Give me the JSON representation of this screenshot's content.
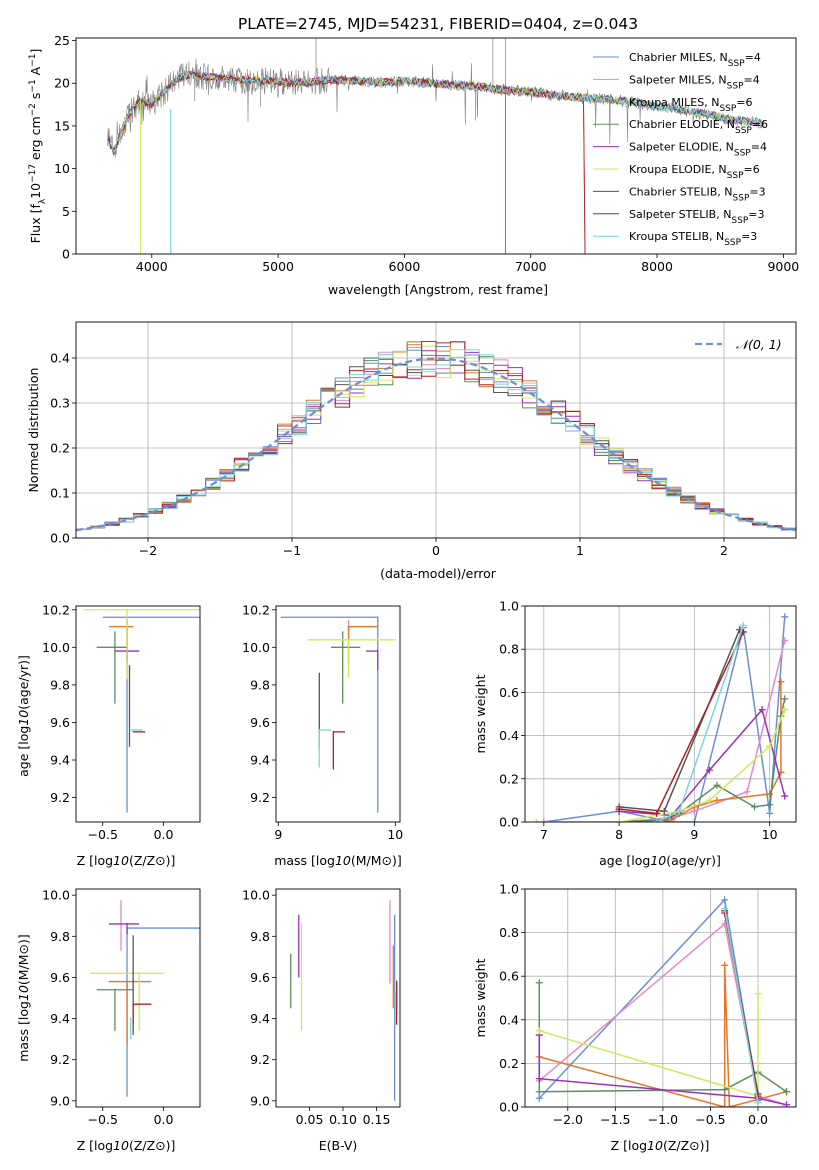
{
  "title": "PLATE=2745, MJD=54231, FIBERID=0404, z=0.043",
  "chart_data": [
    {
      "type": "line",
      "id": "spectrum",
      "xlabel": "wavelength [Angstrom, rest frame]",
      "ylabel": "Flux [f_λ10^-17 erg cm^-2 s^-1 A^-1]",
      "xlim": [
        3400,
        9100
      ],
      "ylim": [
        0,
        25.3
      ],
      "xticks": [
        4000,
        5000,
        6000,
        7000,
        8000,
        9000
      ],
      "yticks": [
        0,
        5,
        10,
        15,
        20,
        25
      ],
      "legend_position": "upper-right",
      "data_continuum": {
        "x": [
          3650,
          3700,
          3800,
          3900,
          4000,
          4100,
          4200,
          4300,
          4400,
          4600,
          4800,
          5000,
          5200,
          5400,
          5600,
          5800,
          6000,
          6200,
          6400,
          6600,
          6800,
          7000,
          7200,
          7400,
          7600,
          7800,
          8000,
          8200,
          8400,
          8600,
          8800
        ],
        "y": [
          13.5,
          12.0,
          15.8,
          18.0,
          17.5,
          19.0,
          20.5,
          21.0,
          20.8,
          20.5,
          20.3,
          20.2,
          20.0,
          20.4,
          20.3,
          20.1,
          20.3,
          20.0,
          19.8,
          19.6,
          19.2,
          19.0,
          18.6,
          18.3,
          18.1,
          17.8,
          17.3,
          16.9,
          16.3,
          15.7,
          15.4
        ]
      },
      "series": [
        {
          "name": "Chabrier MILES, N_SSP=4",
          "color": "#6a8fd6"
        },
        {
          "name": "Salpeter MILES, N_SSP=4",
          "color": "#e68ac3"
        },
        {
          "name": "Kroupa MILES, N_SSP=6",
          "color": "#e6752a"
        },
        {
          "name": "Chabrier ELODIE, N_SSP=6",
          "color": "#5b8f5e"
        },
        {
          "name": "Salpeter ELODIE, N_SSP=4",
          "color": "#9b30bf"
        },
        {
          "name": "Kroupa ELODIE, N_SSP=6",
          "color": "#d4e65c"
        },
        {
          "name": "Chabrier STELIB, N_SSP=3",
          "color": "#555555"
        },
        {
          "name": "Salpeter STELIB, N_SSP=3",
          "color": "#b02020"
        },
        {
          "name": "Kroupa STELIB, N_SSP=3",
          "color": "#7fd6d9"
        }
      ]
    },
    {
      "type": "step",
      "id": "residuals",
      "xlabel": "(data-model)/error",
      "ylabel": "Normed distribution",
      "xlim": [
        -2.5,
        2.5
      ],
      "ylim": [
        0,
        0.48
      ],
      "xticks": [
        -2,
        -1,
        0,
        1,
        2
      ],
      "yticks": [
        0.0,
        0.1,
        0.2,
        0.3,
        0.4
      ],
      "grid": true,
      "legend_position": "upper-right",
      "normal_label": "𝒩(0, 1)",
      "normal_color": "#6a8fd6",
      "bins": 50
    },
    {
      "type": "scatter",
      "id": "age-vs-z",
      "xlabel": "Z [log10(Z/Z⊙)]",
      "ylabel": "age [log10(age/yr)]",
      "xlim": [
        -0.72,
        0.3
      ],
      "ylim": [
        9.07,
        10.22
      ],
      "xticks": [
        -0.5,
        0.0
      ],
      "yticks": [
        9.2,
        9.4,
        9.6,
        9.8,
        10.0,
        10.2
      ],
      "errorbars": [
        {
          "color": "#6a8fd6",
          "x": -0.3,
          "xerr": [
            0.2,
            0.6
          ],
          "y": 10.16,
          "yerr": [
            1.04,
            0
          ]
        },
        {
          "color": "#e68ac3",
          "x": -0.3,
          "xerr": [
            0.0,
            0.0
          ],
          "y": 10.14,
          "yerr": [
            0.1,
            0
          ]
        },
        {
          "color": "#e6752a",
          "x": -0.3,
          "xerr": [
            0.15,
            0.05
          ],
          "y": 10.11,
          "yerr": [
            0.2,
            0
          ]
        },
        {
          "color": "#5b8f5e",
          "x": -0.4,
          "xerr": [
            0.15,
            0.1
          ],
          "y": 10.0,
          "yerr": [
            0.3,
            0.08
          ]
        },
        {
          "color": "#9b30bf",
          "x": -0.3,
          "xerr": [
            0.1,
            0.1
          ],
          "y": 9.98,
          "yerr": [
            0.05,
            0
          ]
        },
        {
          "color": "#d4e65c",
          "x": -0.3,
          "xerr": [
            0.36,
            0.6
          ],
          "y": 10.2,
          "yerr": [
            0.37,
            0
          ]
        },
        {
          "color": "#555555",
          "x": -0.28,
          "xerr": [
            0.0,
            0.0
          ],
          "y": 9.9,
          "yerr": [
            0.43,
            0
          ]
        },
        {
          "color": "#b02020",
          "x": -0.25,
          "xerr": [
            0.0,
            0.1
          ],
          "y": 9.55,
          "yerr": [
            0,
            0
          ]
        },
        {
          "color": "#7fd6d9",
          "x": -0.18,
          "xerr": [
            0.1,
            0.0
          ],
          "y": 9.56,
          "yerr": [
            0,
            0
          ]
        }
      ]
    },
    {
      "type": "scatter",
      "id": "age-vs-mass",
      "xlabel": "mass [log10(M/M⊙)]",
      "ylabel": "",
      "xlim": [
        8.98,
        10.04
      ],
      "ylim": [
        9.07,
        10.22
      ],
      "xticks": [
        9,
        10
      ],
      "yticks": [
        9.2,
        9.4,
        9.6,
        9.8,
        10.0,
        10.2
      ],
      "errorbars": [
        {
          "color": "#6a8fd6",
          "x": 9.85,
          "xerr": [
            0.83,
            0.0
          ],
          "y": 10.16,
          "yerr": [
            1.04,
            0
          ]
        },
        {
          "color": "#e68ac3",
          "x": 9.6,
          "xerr": [
            0.0,
            0.0
          ],
          "y": 10.14,
          "yerr": [
            0.1,
            0
          ]
        },
        {
          "color": "#e6752a",
          "x": 9.6,
          "xerr": [
            0.0,
            0.25
          ],
          "y": 10.11,
          "yerr": [
            0.2,
            0
          ]
        },
        {
          "color": "#5b8f5e",
          "x": 9.55,
          "xerr": [
            0.1,
            0.15
          ],
          "y": 10.0,
          "yerr": [
            0.3,
            0.08
          ]
        },
        {
          "color": "#9b30bf",
          "x": 9.85,
          "xerr": [
            0.1,
            0.0
          ],
          "y": 9.98,
          "yerr": [
            0.1,
            0
          ]
        },
        {
          "color": "#d4e65c",
          "x": 9.6,
          "xerr": [
            0.35,
            0.4
          ],
          "y": 10.04,
          "yerr": [
            0.2,
            0
          ]
        },
        {
          "color": "#555555",
          "x": 9.35,
          "xerr": [
            0.0,
            0.0
          ],
          "y": 9.86,
          "yerr": [
            0.4,
            0
          ]
        },
        {
          "color": "#b02020",
          "x": 9.47,
          "xerr": [
            0.0,
            0.1
          ],
          "y": 9.55,
          "yerr": [
            0.2,
            0
          ]
        },
        {
          "color": "#7fd6d9",
          "x": 9.35,
          "xerr": [
            0.0,
            0.1
          ],
          "y": 9.56,
          "yerr": [
            0.2,
            0
          ]
        }
      ]
    },
    {
      "type": "line",
      "id": "massweight-vs-age",
      "xlabel": "age [log10(age/yr)]",
      "ylabel": "mass weight",
      "xlim": [
        6.75,
        10.35
      ],
      "ylim": [
        0,
        1.0
      ],
      "xticks": [
        7,
        8,
        9,
        10
      ],
      "yticks": [
        0.0,
        0.2,
        0.4,
        0.6,
        0.8,
        1.0
      ],
      "grid": true,
      "series": [
        {
          "color": "#6a8fd6",
          "x": [
            7.0,
            8.0,
            8.7,
            9.0,
            9.65,
            10.0,
            10.2
          ],
          "y": [
            0.0,
            0.05,
            0.0,
            0.0,
            0.9,
            0.04,
            0.95
          ]
        },
        {
          "color": "#e68ac3",
          "x": [
            7.0,
            8.0,
            8.7,
            9.0,
            9.7,
            10.2
          ],
          "y": [
            0.0,
            0.0,
            0.02,
            0.05,
            0.14,
            0.84
          ]
        },
        {
          "color": "#e6752a",
          "x": [
            8.0,
            8.7,
            9.0,
            9.3,
            10.0,
            10.15,
            10.15
          ],
          "y": [
            0.0,
            0.01,
            0.07,
            0.1,
            0.13,
            0.23,
            0.65
          ]
        },
        {
          "color": "#5b8f5e",
          "x": [
            8.0,
            8.6,
            8.8,
            9.3,
            9.8,
            10.0,
            10.15,
            10.2
          ],
          "y": [
            0.0,
            0.01,
            0.04,
            0.17,
            0.07,
            0.08,
            0.49,
            0.57
          ]
        },
        {
          "color": "#9b30bf",
          "x": [
            8.0,
            8.7,
            9.2,
            9.9,
            10.2
          ],
          "y": [
            0.05,
            0.03,
            0.24,
            0.52,
            0.12
          ]
        },
        {
          "color": "#d4e65c",
          "x": [
            6.9,
            8.0,
            8.8,
            9.2,
            10.0,
            10.2
          ],
          "y": [
            0.0,
            0.0,
            0.05,
            0.1,
            0.35,
            0.52
          ]
        },
        {
          "color": "#555555",
          "x": [
            8.0,
            8.6,
            9.6
          ],
          "y": [
            0.07,
            0.05,
            0.89
          ]
        },
        {
          "color": "#b02020",
          "x": [
            8.0,
            8.5,
            9.65
          ],
          "y": [
            0.06,
            0.04,
            0.88
          ]
        },
        {
          "color": "#7fd6d9",
          "x": [
            8.5,
            8.8,
            9.65
          ],
          "y": [
            0.0,
            0.05,
            0.91
          ]
        }
      ]
    },
    {
      "type": "scatter",
      "id": "mass-vs-z",
      "xlabel": "Z [log10(Z/Z⊙)]",
      "ylabel": "mass [log10(M/M⊙)]",
      "xlim": [
        -0.72,
        0.3
      ],
      "ylim": [
        8.97,
        10.03
      ],
      "xticks": [
        -0.5,
        0.0
      ],
      "yticks": [
        9.0,
        9.2,
        9.4,
        9.6,
        9.8,
        10.0
      ],
      "errorbars": [
        {
          "color": "#6a8fd6",
          "x": -0.3,
          "xerr": [
            0.0,
            0.6
          ],
          "y": 9.84,
          "yerr": [
            0.82,
            0
          ]
        },
        {
          "color": "#e68ac3",
          "x": -0.35,
          "xerr": [
            0.0,
            0.0
          ],
          "y": 9.85,
          "yerr": [
            0.12,
            0.12
          ]
        },
        {
          "color": "#e6752a",
          "x": -0.3,
          "xerr": [
            0.15,
            0.2
          ],
          "y": 9.58,
          "yerr": [
            0.3,
            0
          ]
        },
        {
          "color": "#5b8f5e",
          "x": -0.4,
          "xerr": [
            0.15,
            0.15
          ],
          "y": 9.54,
          "yerr": [
            0.2,
            0
          ]
        },
        {
          "color": "#9b30bf",
          "x": -0.3,
          "xerr": [
            0.15,
            0.1
          ],
          "y": 9.86,
          "yerr": [
            0.05,
            0
          ]
        },
        {
          "color": "#d4e65c",
          "x": -0.2,
          "xerr": [
            0.4,
            0.2
          ],
          "y": 9.62,
          "yerr": [
            0.28,
            0
          ]
        },
        {
          "color": "#555555",
          "x": -0.25,
          "xerr": [
            0.0,
            0.0
          ],
          "y": 9.8,
          "yerr": [
            0.48,
            0
          ]
        },
        {
          "color": "#b02020",
          "x": -0.25,
          "xerr": [
            0.0,
            0.15
          ],
          "y": 9.47,
          "yerr": [
            0.1,
            0
          ]
        },
        {
          "color": "#7fd6d9",
          "x": -0.27,
          "xerr": [
            0.0,
            0.0
          ],
          "y": 9.4,
          "yerr": [
            0.1,
            0
          ]
        }
      ]
    },
    {
      "type": "scatter",
      "id": "mass-vs-ebv",
      "xlabel": "E(B-V)",
      "ylabel": "",
      "xlim": [
        0.0,
        0.185
      ],
      "ylim": [
        8.97,
        10.03
      ],
      "xticks": [
        0.05,
        0.1,
        0.15
      ],
      "yticks": [
        9.0,
        9.2,
        9.4,
        9.6,
        9.8,
        10.0
      ],
      "errorbars": [
        {
          "color": "#6a8fd6",
          "x": 0.177,
          "y": 9.45,
          "yerr": [
            0.45,
            0.45
          ]
        },
        {
          "color": "#e68ac3",
          "x": 0.17,
          "y": 9.77,
          "yerr": [
            0.2,
            0.2
          ]
        },
        {
          "color": "#e6752a",
          "x": 0.175,
          "y": 9.6,
          "yerr": [
            0.15,
            0.15
          ]
        },
        {
          "color": "#5b8f5e",
          "x": 0.022,
          "y": 9.58,
          "yerr": [
            0.13,
            0.13
          ]
        },
        {
          "color": "#9b30bf",
          "x": 0.034,
          "y": 9.75,
          "yerr": [
            0.15,
            0.15
          ]
        },
        {
          "color": "#d4e65c",
          "x": 0.038,
          "y": 9.6,
          "yerr": [
            0.26,
            0.26
          ]
        },
        {
          "color": "#555555",
          "x": 0.18,
          "y": 9.5,
          "yerr": [
            0.08,
            0.08
          ]
        },
        {
          "color": "#b02020",
          "x": 0.18,
          "y": 9.47,
          "yerr": [
            0.1,
            0.1
          ]
        },
        {
          "color": "#7fd6d9",
          "x": 0.178,
          "y": 9.45,
          "yerr": [
            0.08,
            0.08
          ]
        }
      ]
    },
    {
      "type": "line",
      "id": "massweight-vs-z",
      "xlabel": "Z [log10(Z/Z⊙)]",
      "ylabel": "mass weight",
      "xlim": [
        -2.45,
        0.4
      ],
      "ylim": [
        0,
        1.0
      ],
      "xticks": [
        -2.0,
        -1.5,
        -1.0,
        -0.5,
        0.0
      ],
      "yticks": [
        0.0,
        0.2,
        0.4,
        0.6,
        0.8,
        1.0
      ],
      "grid": true,
      "series": [
        {
          "color": "#6a8fd6",
          "x": [
            -2.3,
            -0.35,
            0.0,
            0.0
          ],
          "y": [
            0.04,
            0.95,
            0.05,
            0.03
          ]
        },
        {
          "color": "#e68ac3",
          "x": [
            -2.3,
            -0.35,
            0.0,
            0.3
          ],
          "y": [
            0.12,
            0.84,
            0.05,
            0.01
          ]
        },
        {
          "color": "#e6752a",
          "x": [
            -2.3,
            -0.35,
            -0.35,
            -0.3,
            0.3
          ],
          "y": [
            0.23,
            0.0,
            0.65,
            0.0,
            0.07
          ]
        },
        {
          "color": "#5b8f5e",
          "x": [
            -2.3,
            -2.3,
            -0.35,
            0.0,
            0.3
          ],
          "y": [
            0.57,
            0.07,
            0.08,
            0.16,
            0.07
          ]
        },
        {
          "color": "#9b30bf",
          "x": [
            -2.3,
            -2.3,
            0.0,
            0.3
          ],
          "y": [
            0.33,
            0.13,
            0.04,
            0.01
          ]
        },
        {
          "color": "#d4e65c",
          "x": [
            -2.3,
            0.0,
            0.0
          ],
          "y": [
            0.35,
            0.05,
            0.52
          ]
        },
        {
          "color": "#555555",
          "x": [
            -0.35,
            0.0
          ],
          "y": [
            0.9,
            0.06
          ]
        },
        {
          "color": "#b02020",
          "x": [
            -0.35,
            0.0
          ],
          "y": [
            0.89,
            0.05
          ]
        },
        {
          "color": "#7fd6d9",
          "x": [
            -0.35,
            0.0
          ],
          "y": [
            0.91,
            0.02
          ]
        }
      ]
    }
  ]
}
